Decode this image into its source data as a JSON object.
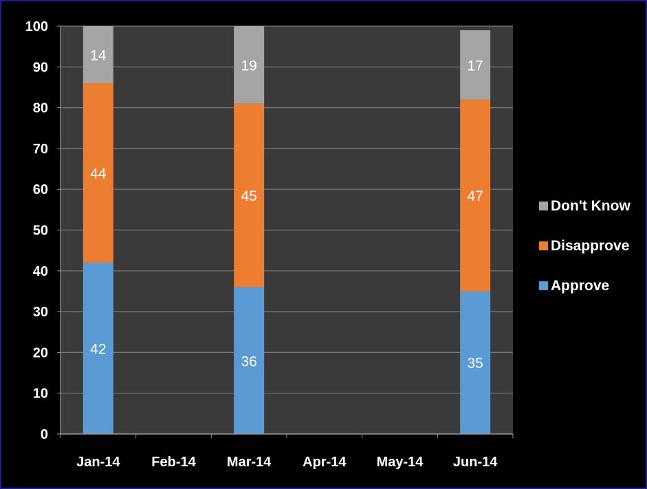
{
  "chart_data": {
    "type": "bar",
    "stacked": true,
    "categories": [
      "Jan-14",
      "Feb-14",
      "Mar-14",
      "Apr-14",
      "May-14",
      "Jun-14"
    ],
    "series": [
      {
        "name": "Approve",
        "values": [
          42,
          null,
          36,
          null,
          null,
          35
        ],
        "color": "#5b9bd5"
      },
      {
        "name": "Disapprove",
        "values": [
          44,
          null,
          45,
          null,
          null,
          47
        ],
        "color": "#ed7d31"
      },
      {
        "name": "Don't Know",
        "values": [
          14,
          null,
          19,
          null,
          null,
          17
        ],
        "color": "#a5a5a5"
      }
    ],
    "ylim": [
      0,
      100
    ],
    "yticks": [
      0,
      10,
      20,
      30,
      40,
      50,
      60,
      70,
      80,
      90,
      100
    ],
    "title": "",
    "xlabel": "",
    "ylabel": "",
    "grid": true,
    "legend_position": "right",
    "plot_background": "#3a3a3a",
    "page_background": "#000000"
  }
}
